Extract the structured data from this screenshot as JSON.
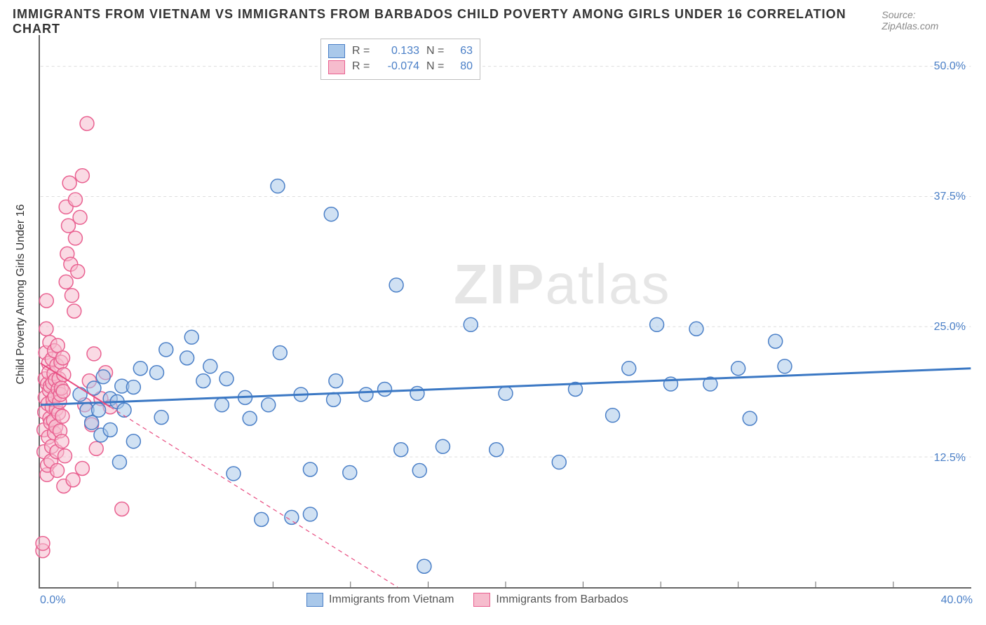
{
  "title": "IMMIGRANTS FROM VIETNAM VS IMMIGRANTS FROM BARBADOS CHILD POVERTY AMONG GIRLS UNDER 16 CORRELATION CHART",
  "source": "Source: ZipAtlas.com",
  "y_axis_label": "Child Poverty Among Girls Under 16",
  "watermark": {
    "zip": "ZIP",
    "atlas": "atlas"
  },
  "axes": {
    "x_min": 0.0,
    "x_max": 40.0,
    "y_min": 0.0,
    "y_max": 53.0,
    "x_ticks": [
      0.0,
      40.0
    ],
    "x_tick_labels": [
      "0.0%",
      "40.0%"
    ],
    "x_minor_ticks": [
      3.33,
      6.67,
      10.0,
      13.33,
      16.67,
      20.0,
      23.33,
      26.67,
      30.0,
      33.33,
      36.67
    ],
    "y_gridlines": [
      12.5,
      25.0,
      37.5,
      50.0
    ],
    "y_tick_labels": [
      "12.5%",
      "25.0%",
      "37.5%",
      "50.0%"
    ]
  },
  "colors": {
    "blue_fill": "#a9c8ea",
    "blue_stroke": "#4a7fc7",
    "pink_fill": "#f6bccd",
    "pink_stroke": "#e96090",
    "blue_line": "#3b78c4",
    "pink_line": "#e84c80",
    "grid": "#dddddd",
    "axis": "#666666",
    "text": "#333333",
    "tick_text": "#4a7fc7",
    "watermark": "#e6e6e6"
  },
  "marker": {
    "radius": 10,
    "stroke_width": 1.5,
    "fill_opacity": 0.55
  },
  "series": [
    {
      "name": "Immigrants from Vietnam",
      "color_key": "blue",
      "r": "0.133",
      "n": "63",
      "trend": {
        "x1": 0.0,
        "y1": 17.5,
        "x2": 40.0,
        "y2": 21.0,
        "dash": "none",
        "width": 3,
        "extrapolate_from_x": null
      },
      "points": [
        [
          1.7,
          18.5
        ],
        [
          2.0,
          17.0
        ],
        [
          2.2,
          15.8
        ],
        [
          2.3,
          19.1
        ],
        [
          2.5,
          17.0
        ],
        [
          2.6,
          14.6
        ],
        [
          2.7,
          20.2
        ],
        [
          3.0,
          18.1
        ],
        [
          3.0,
          15.1
        ],
        [
          3.3,
          17.8
        ],
        [
          3.4,
          12.0
        ],
        [
          3.5,
          19.3
        ],
        [
          3.6,
          17.0
        ],
        [
          4.0,
          14.0
        ],
        [
          4.0,
          19.2
        ],
        [
          4.3,
          21.0
        ],
        [
          5.0,
          20.6
        ],
        [
          5.2,
          16.3
        ],
        [
          5.4,
          22.8
        ],
        [
          6.3,
          22.0
        ],
        [
          6.5,
          24.0
        ],
        [
          7.0,
          19.8
        ],
        [
          7.3,
          21.2
        ],
        [
          7.8,
          17.5
        ],
        [
          8.0,
          20.0
        ],
        [
          8.3,
          10.9
        ],
        [
          8.8,
          18.2
        ],
        [
          9.0,
          16.2
        ],
        [
          9.5,
          6.5
        ],
        [
          9.8,
          17.5
        ],
        [
          10.2,
          38.5
        ],
        [
          10.3,
          22.5
        ],
        [
          10.8,
          6.7
        ],
        [
          11.2,
          18.5
        ],
        [
          11.6,
          11.3
        ],
        [
          11.6,
          7.0
        ],
        [
          12.5,
          35.8
        ],
        [
          12.6,
          18.0
        ],
        [
          12.7,
          19.8
        ],
        [
          13.3,
          11.0
        ],
        [
          14.0,
          18.5
        ],
        [
          14.8,
          19.0
        ],
        [
          15.3,
          29.0
        ],
        [
          15.5,
          13.2
        ],
        [
          16.2,
          18.6
        ],
        [
          16.3,
          11.2
        ],
        [
          16.5,
          2.0
        ],
        [
          17.3,
          13.5
        ],
        [
          18.5,
          25.2
        ],
        [
          19.6,
          13.2
        ],
        [
          20.0,
          18.6
        ],
        [
          22.3,
          12.0
        ],
        [
          23.0,
          19.0
        ],
        [
          24.6,
          16.5
        ],
        [
          25.3,
          21.0
        ],
        [
          26.5,
          25.2
        ],
        [
          27.1,
          19.5
        ],
        [
          28.2,
          24.8
        ],
        [
          28.8,
          19.5
        ],
        [
          30.0,
          21.0
        ],
        [
          30.5,
          16.2
        ],
        [
          31.6,
          23.6
        ],
        [
          32.0,
          21.2
        ]
      ]
    },
    {
      "name": "Immigrants from Barbados",
      "color_key": "pink",
      "r": "-0.074",
      "n": "80",
      "trend": {
        "x1": 0.0,
        "y1": 21.5,
        "x2": 3.0,
        "y2": 17.3,
        "dash": "6,5",
        "width": 2,
        "extrapolate_from_x": 3.0
      },
      "points": [
        [
          0.1,
          3.5
        ],
        [
          0.1,
          4.2
        ],
        [
          0.15,
          13.0
        ],
        [
          0.15,
          15.1
        ],
        [
          0.18,
          16.8
        ],
        [
          0.2,
          18.2
        ],
        [
          0.2,
          20.0
        ],
        [
          0.22,
          22.5
        ],
        [
          0.25,
          24.8
        ],
        [
          0.26,
          27.5
        ],
        [
          0.28,
          10.8
        ],
        [
          0.3,
          11.7
        ],
        [
          0.3,
          19.5
        ],
        [
          0.32,
          17.6
        ],
        [
          0.34,
          14.4
        ],
        [
          0.35,
          21.5
        ],
        [
          0.36,
          20.6
        ],
        [
          0.38,
          18.9
        ],
        [
          0.4,
          16.2
        ],
        [
          0.4,
          23.5
        ],
        [
          0.42,
          19.3
        ],
        [
          0.44,
          15.8
        ],
        [
          0.45,
          12.1
        ],
        [
          0.48,
          13.5
        ],
        [
          0.5,
          17.3
        ],
        [
          0.5,
          21.9
        ],
        [
          0.52,
          19.6
        ],
        [
          0.54,
          18.0
        ],
        [
          0.56,
          16.0
        ],
        [
          0.58,
          20.5
        ],
        [
          0.6,
          14.8
        ],
        [
          0.6,
          22.7
        ],
        [
          0.62,
          18.3
        ],
        [
          0.64,
          19.9
        ],
        [
          0.66,
          15.4
        ],
        [
          0.68,
          17.1
        ],
        [
          0.7,
          21.3
        ],
        [
          0.7,
          13.0
        ],
        [
          0.72,
          11.2
        ],
        [
          0.74,
          23.2
        ],
        [
          0.76,
          19.0
        ],
        [
          0.78,
          16.7
        ],
        [
          0.8,
          20.0
        ],
        [
          0.82,
          17.8
        ],
        [
          0.84,
          15.0
        ],
        [
          0.86,
          18.5
        ],
        [
          0.88,
          21.6
        ],
        [
          0.9,
          19.1
        ],
        [
          0.92,
          14.0
        ],
        [
          0.94,
          16.4
        ],
        [
          0.96,
          22.0
        ],
        [
          0.98,
          18.8
        ],
        [
          1.0,
          20.4
        ],
        [
          1.0,
          9.7
        ],
        [
          1.05,
          12.6
        ],
        [
          1.1,
          29.3
        ],
        [
          1.1,
          36.5
        ],
        [
          1.15,
          32.0
        ],
        [
          1.2,
          34.7
        ],
        [
          1.25,
          38.8
        ],
        [
          1.3,
          31.0
        ],
        [
          1.35,
          28.0
        ],
        [
          1.4,
          10.3
        ],
        [
          1.45,
          26.5
        ],
        [
          1.5,
          33.5
        ],
        [
          1.5,
          37.2
        ],
        [
          1.6,
          30.3
        ],
        [
          1.7,
          35.5
        ],
        [
          1.8,
          11.4
        ],
        [
          1.8,
          39.5
        ],
        [
          1.9,
          17.5
        ],
        [
          2.0,
          44.5
        ],
        [
          2.1,
          19.8
        ],
        [
          2.2,
          15.6
        ],
        [
          2.3,
          22.4
        ],
        [
          2.4,
          13.3
        ],
        [
          2.6,
          18.1
        ],
        [
          2.8,
          20.6
        ],
        [
          3.0,
          17.3
        ],
        [
          3.5,
          7.5
        ]
      ]
    }
  ],
  "stats_box": {
    "r_label": "R =",
    "n_label": "N ="
  },
  "legend": {
    "items": [
      "Immigrants from Vietnam",
      "Immigrants from Barbados"
    ]
  }
}
